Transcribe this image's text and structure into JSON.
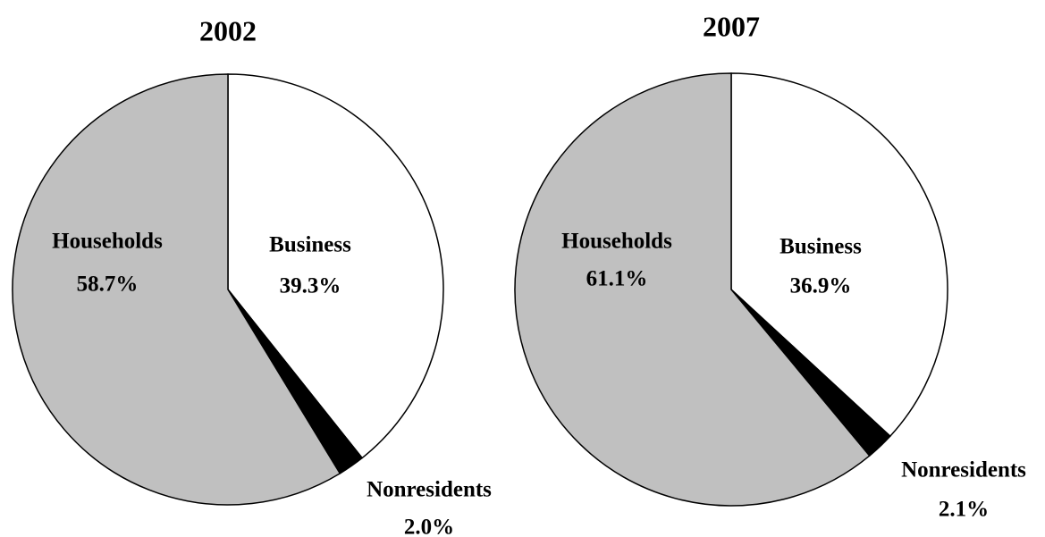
{
  "chart_data": [
    {
      "type": "pie",
      "title": "2002",
      "categories": [
        "Business",
        "Nonresidents",
        "Households"
      ],
      "values": [
        39.3,
        2.0,
        58.7
      ],
      "value_labels": [
        "39.3%",
        "2.0%",
        "58.7%"
      ],
      "colors": [
        "#ffffff",
        "#000000",
        "#c0c0c0"
      ]
    },
    {
      "type": "pie",
      "title": "2007",
      "categories": [
        "Business",
        "Nonresidents",
        "Households"
      ],
      "values": [
        36.9,
        2.1,
        61.1
      ],
      "value_labels": [
        "36.9%",
        "2.1%",
        "61.1%"
      ],
      "colors": [
        "#ffffff",
        "#000000",
        "#c0c0c0"
      ]
    }
  ]
}
